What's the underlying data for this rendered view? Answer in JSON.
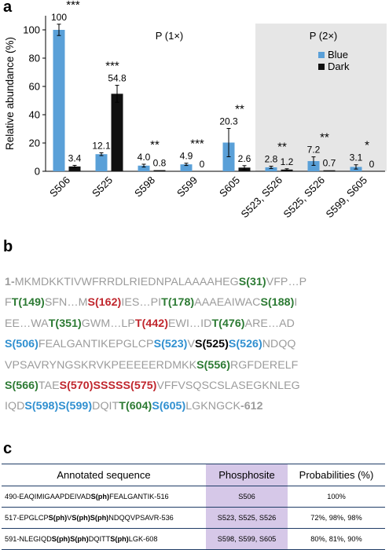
{
  "panels": {
    "a": "a",
    "b": "b",
    "c": "c"
  },
  "chart_data": {
    "type": "bar",
    "ylabel": "Relative abundance (%)",
    "ylim": [
      0,
      110
    ],
    "yticks": [
      "0",
      "20",
      "40",
      "60",
      "80",
      "100"
    ],
    "categories": [
      "S506",
      "S525",
      "S598",
      "S599",
      "S605",
      "S523, S526",
      "S525, S526",
      "S599, S605"
    ],
    "series": [
      {
        "name": "Blue",
        "color": "#5aa0d8",
        "values": [
          100,
          12.1,
          4.0,
          4.9,
          20.3,
          2.8,
          7.2,
          3.1
        ],
        "labels": [
          "100",
          "12.1",
          "4.0",
          "4.9",
          "20.3",
          "2.8",
          "7.2",
          "3.1"
        ],
        "errors": [
          4,
          1,
          1,
          0.8,
          10,
          0.8,
          3,
          1.5
        ]
      },
      {
        "name": "Dark",
        "color": "#111111",
        "values": [
          3.4,
          54.8,
          0.8,
          0,
          2.6,
          1.2,
          0.7,
          0
        ],
        "labels": [
          "3.4",
          "54.8",
          "0.8",
          "0",
          "2.6",
          "1.2",
          "0.7",
          "0"
        ],
        "errors": [
          0.8,
          6,
          0,
          0,
          1.4,
          0.6,
          0,
          0
        ]
      }
    ],
    "significance": [
      "***",
      "***",
      "**",
      "***",
      "**",
      "**",
      "**",
      "*"
    ],
    "region_labels": [
      "P (1×)",
      "P (2×)"
    ],
    "shaded_region_start": "S523, S526",
    "shade_color": "#e6e6e6",
    "legend_position": "top-right"
  },
  "sequence": {
    "lines": [
      [
        [
          "gyb",
          "1-"
        ],
        [
          "gy",
          "MKMDKKTIVWFRRDLRIEDNPALAAAAHEG"
        ],
        [
          "gr",
          "S(31)"
        ],
        [
          "gy",
          "VFP…P"
        ]
      ],
      [
        [
          "gy",
          "F"
        ],
        [
          "gr",
          "T(149)"
        ],
        [
          "gy",
          "SFN…M"
        ],
        [
          "rd",
          "S(162)"
        ],
        [
          "gy",
          "IES…PI"
        ],
        [
          "gr",
          "T(178)"
        ],
        [
          "gy",
          "AAAEAIWAC"
        ],
        [
          "gr",
          "S(188)"
        ],
        [
          "gy",
          "I"
        ]
      ],
      [
        [
          "gy",
          "EE…WA"
        ],
        [
          "gr",
          "T(351)"
        ],
        [
          "gy",
          "GWM…LP"
        ],
        [
          "rd",
          "T(442)"
        ],
        [
          "gy",
          "EWI…ID"
        ],
        [
          "gr",
          "T(476)"
        ],
        [
          "gy",
          "ARE…AD"
        ]
      ],
      [
        [
          "bl",
          "S(506)"
        ],
        [
          "gy",
          "FEALGANTIKEPGLCP"
        ],
        [
          "bl",
          "S(523)"
        ],
        [
          "gy",
          "V"
        ],
        [
          "bk",
          "S(525)"
        ],
        [
          "bl",
          "S(526)"
        ],
        [
          "gy",
          "NDQQ"
        ]
      ],
      [
        [
          "gy",
          "VPSAVRYNGSKRVKPEEEEERDMKK"
        ],
        [
          "gr",
          "S(556)"
        ],
        [
          "gy",
          "RGFDERELF"
        ]
      ],
      [
        [
          "gr",
          "S(566)"
        ],
        [
          "gy",
          "TAE"
        ],
        [
          "rd",
          "S(570)SSSSS(575)"
        ],
        [
          "gy",
          "VFFVSQSCSLASEGKNLEG"
        ]
      ],
      [
        [
          "gy",
          "IQD"
        ],
        [
          "bl",
          "S(598)S(599)"
        ],
        [
          "gy",
          "DQIT"
        ],
        [
          "gr",
          "T(604)"
        ],
        [
          "bl",
          "S(605)"
        ],
        [
          "gy",
          "LGKNGCK"
        ],
        [
          "gyb",
          "-612"
        ]
      ]
    ]
  },
  "table": {
    "headers": [
      "Annotated sequence",
      "Phosphosite",
      "Probabilities (%)"
    ],
    "rows": [
      {
        "seq": [
          [
            "n",
            "490-EAQIMIGAAPDEIVAD"
          ],
          [
            "b",
            "S(ph)"
          ],
          [
            "n",
            "FEALGANTIK-516"
          ]
        ],
        "site": "S506",
        "prob": "100%"
      },
      {
        "seq": [
          [
            "n",
            "517-EPGLCP"
          ],
          [
            "b",
            "S(ph)"
          ],
          [
            "n",
            "V"
          ],
          [
            "b",
            "S(ph)S(ph)"
          ],
          [
            "n",
            "NDQQVPSAVR-536"
          ]
        ],
        "site": "S523, S525, S526",
        "prob": "72%, 98%, 98%"
      },
      {
        "seq": [
          [
            "n",
            "591-NLEGIQD"
          ],
          [
            "b",
            "S(ph)S(ph)"
          ],
          [
            "n",
            "DQITT"
          ],
          [
            "b",
            "S(ph)"
          ],
          [
            "n",
            "LGK-608"
          ]
        ],
        "site": "S598, S599, S605",
        "prob": "80%, 81%, 90%"
      }
    ]
  }
}
